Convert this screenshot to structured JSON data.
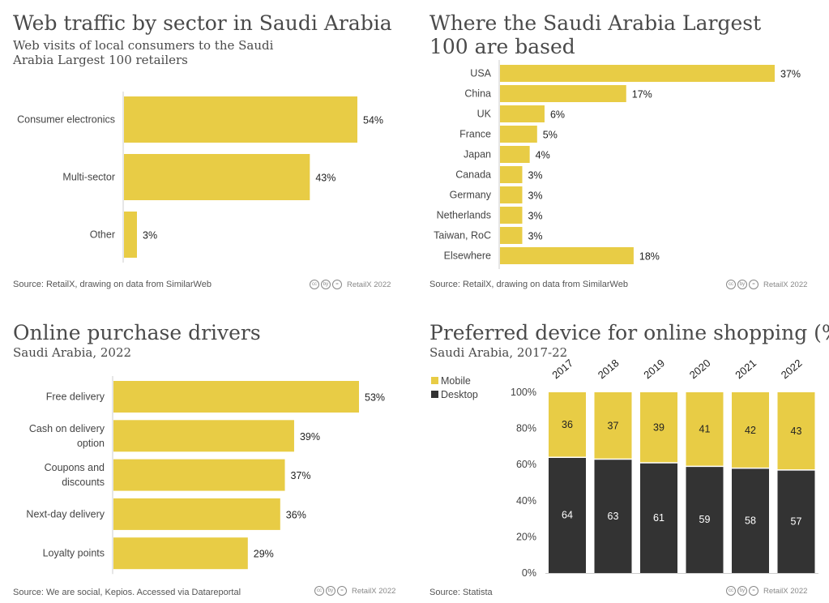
{
  "chart_data": [
    {
      "type": "bar",
      "orientation": "horizontal",
      "title": "Web traffic by sector in Saudi Arabia",
      "subtitle": "Web visits of local consumers to the Saudi Arabia Largest 100 retailers",
      "categories": [
        "Consumer electronics",
        "Multi-sector",
        "Other"
      ],
      "values": [
        54,
        43,
        3
      ],
      "value_labels": [
        "54%",
        "43%",
        "3%"
      ],
      "xlim": [
        0,
        54
      ],
      "source": "Source: RetailX, drawing on data from SimilarWeb",
      "credit": "RetailX 2022"
    },
    {
      "type": "bar",
      "orientation": "horizontal",
      "title": "Where the Saudi Arabia Largest 100 are based",
      "categories": [
        "USA",
        "China",
        "UK",
        "France",
        "Japan",
        "Canada",
        "Germany",
        "Netherlands",
        "Taiwan, RoC",
        "Elsewhere"
      ],
      "values": [
        37,
        17,
        6,
        5,
        4,
        3,
        3,
        3,
        3,
        18
      ],
      "value_labels": [
        "37%",
        "17%",
        "6%",
        "5%",
        "4%",
        "3%",
        "3%",
        "3%",
        "3%",
        "18%"
      ],
      "xlim": [
        0,
        37
      ],
      "source": "Source: RetailX, drawing on data from SimilarWeb",
      "credit": "RetailX 2022"
    },
    {
      "type": "bar",
      "orientation": "horizontal",
      "title": "Online purchase drivers",
      "subtitle": "Saudi Arabia, 2022",
      "categories": [
        "Free delivery",
        "Cash on delivery option",
        "Coupons and discounts",
        "Next-day delivery",
        "Loyalty points"
      ],
      "value_labels": [
        "53%",
        "39%",
        "37%",
        "36%",
        "29%"
      ],
      "values": [
        53,
        39,
        37,
        36,
        29
      ],
      "xlim": [
        0,
        53
      ],
      "source": "Source: We are social, Kepios. Accessed via Datareportal",
      "credit": "RetailX 2022"
    },
    {
      "type": "bar",
      "stacked": true,
      "title": "Preferred device for online shopping (%)",
      "subtitle": "Saudi Arabia, 2017-22",
      "categories": [
        "2017",
        "2018",
        "2019",
        "2020",
        "2021",
        "2022"
      ],
      "series": [
        {
          "name": "Desktop",
          "values": [
            64,
            63,
            61,
            59,
            58,
            57
          ],
          "color": "#333333"
        },
        {
          "name": "Mobile",
          "values": [
            36,
            37,
            39,
            41,
            42,
            43
          ],
          "color": "#e8cc45"
        }
      ],
      "yticks": [
        "0%",
        "20%",
        "40%",
        "60%",
        "80%",
        "100%"
      ],
      "ylim": [
        0,
        100
      ],
      "legend": [
        "Mobile",
        "Desktop"
      ],
      "legend_position": "top-left",
      "source": "Source: Statista",
      "credit": "RetailX 2022"
    }
  ],
  "colors": {
    "accent": "#e8cc45",
    "dark": "#333333"
  },
  "cc_icons": [
    "cc",
    "by",
    "="
  ]
}
